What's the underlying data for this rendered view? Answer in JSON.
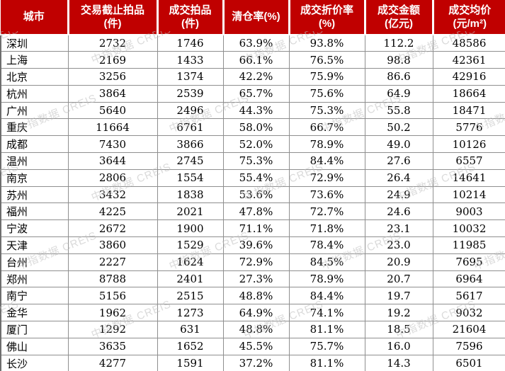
{
  "chart_data": {
    "type": "table",
    "title": "",
    "columns": [
      "城市",
      "交易截止拍品(件)",
      "成交拍品(件)",
      "清仓率(%)",
      "成交折价率(%)",
      "成交金额(亿元)",
      "成交均价(元/m²)"
    ],
    "rows": [
      [
        "深圳",
        "2732",
        "1746",
        "63.9%",
        "93.8%",
        "112.2",
        "48586"
      ],
      [
        "上海",
        "2169",
        "1433",
        "66.1%",
        "76.5%",
        "98.8",
        "42361"
      ],
      [
        "北京",
        "3256",
        "1374",
        "42.2%",
        "75.9%",
        "86.6",
        "42916"
      ],
      [
        "杭州",
        "3864",
        "2539",
        "65.7%",
        "75.6%",
        "64.9",
        "18664"
      ],
      [
        "广州",
        "5640",
        "2496",
        "44.3%",
        "75.3%",
        "55.8",
        "18471"
      ],
      [
        "重庆",
        "11664",
        "6761",
        "58.0%",
        "66.7%",
        "50.2",
        "5776"
      ],
      [
        "成都",
        "7430",
        "3866",
        "52.0%",
        "78.9%",
        "49.0",
        "10126"
      ],
      [
        "温州",
        "3644",
        "2745",
        "75.3%",
        "84.4%",
        "27.6",
        "6557"
      ],
      [
        "南京",
        "2806",
        "1554",
        "55.4%",
        "72.9%",
        "26.4",
        "14641"
      ],
      [
        "苏州",
        "3432",
        "1838",
        "53.6%",
        "73.6%",
        "24.9",
        "10214"
      ],
      [
        "福州",
        "4225",
        "2021",
        "47.8%",
        "72.7%",
        "24.6",
        "9003"
      ],
      [
        "宁波",
        "2672",
        "1900",
        "71.1%",
        "71.8%",
        "23.1",
        "10032"
      ],
      [
        "天津",
        "3860",
        "1529",
        "39.6%",
        "78.4%",
        "23.0",
        "11985"
      ],
      [
        "台州",
        "2227",
        "1624",
        "72.9%",
        "84.5%",
        "20.9",
        "7695"
      ],
      [
        "郑州",
        "8788",
        "2401",
        "27.3%",
        "78.9%",
        "20.7",
        "6964"
      ],
      [
        "南宁",
        "5156",
        "2515",
        "48.8%",
        "84.4%",
        "19.7",
        "5617"
      ],
      [
        "金华",
        "1962",
        "1273",
        "64.9%",
        "74.1%",
        "19.2",
        "9032"
      ],
      [
        "厦门",
        "1292",
        "631",
        "48.8%",
        "81.1%",
        "18.5",
        "21604"
      ],
      [
        "佛山",
        "3635",
        "1652",
        "45.5%",
        "75.7%",
        "16.0",
        "7596"
      ],
      [
        "长沙",
        "4277",
        "1591",
        "37.2%",
        "81.1%",
        "14.3",
        "6501"
      ]
    ]
  },
  "table": {
    "columns": [
      {
        "label": "城市",
        "sub": ""
      },
      {
        "label": "交易截止拍品",
        "sub": "(件)"
      },
      {
        "label": "成交拍品",
        "sub": "(件)"
      },
      {
        "label": "清仓率(%)",
        "sub": ""
      },
      {
        "label": "成交折价率",
        "sub": "(%)"
      },
      {
        "label": "成交金额",
        "sub": "(亿元)"
      },
      {
        "label": "成交均价",
        "sub": "(元/m²)"
      }
    ]
  },
  "watermark": {
    "text": "中指数据 CREIS",
    "color": "#bdbdbd"
  },
  "colors": {
    "header_bg": "#c00000",
    "header_text": "#ffffff",
    "grid_line": "#8f8f8f",
    "body_text": "#000000",
    "background": "#ffffff"
  }
}
